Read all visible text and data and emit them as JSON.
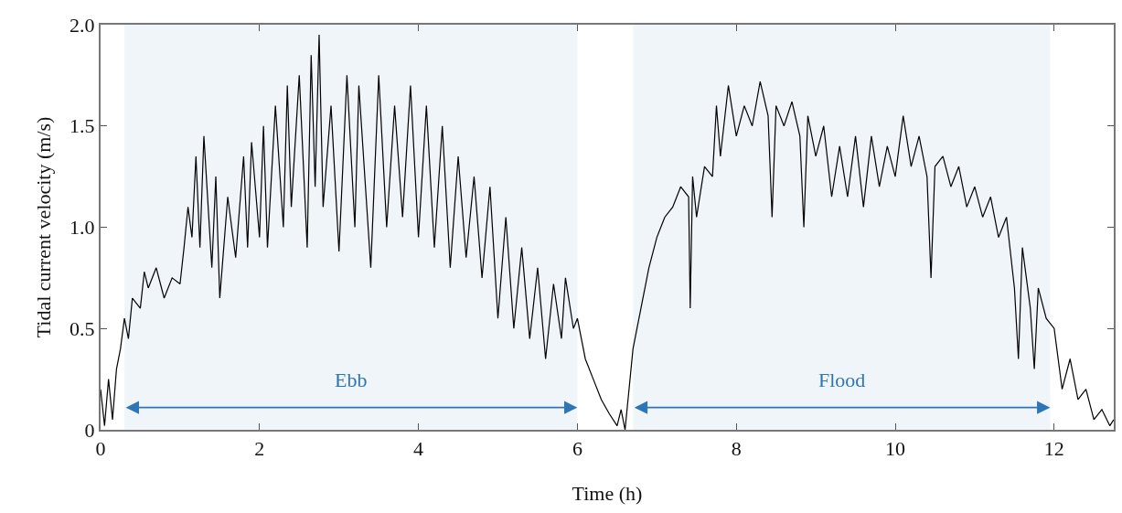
{
  "chart_data": {
    "type": "line",
    "xlabel": "Time (h)",
    "ylabel": "Tidal current velocity (m/s)",
    "xlim": [
      0,
      12.75
    ],
    "xticks": [
      0,
      2,
      4,
      6,
      8,
      10,
      12
    ],
    "ylim": [
      0,
      2.0
    ],
    "yticks": [
      0,
      0.5,
      {
        "value": 1.0,
        "label": "1.0"
      },
      1.5,
      {
        "value": 2.0,
        "label": "2.0"
      }
    ],
    "grid": false,
    "marker": "none",
    "line_style": "solid",
    "x": [
      0,
      0.05,
      0.1,
      0.15,
      0.2,
      0.25,
      0.3,
      0.35,
      0.4,
      0.5,
      0.55,
      0.6,
      0.7,
      0.8,
      0.9,
      1.0,
      1.05,
      1.1,
      1.15,
      1.2,
      1.25,
      1.3,
      1.4,
      1.45,
      1.5,
      1.6,
      1.7,
      1.8,
      1.85,
      1.9,
      2.0,
      2.05,
      2.1,
      2.2,
      2.3,
      2.35,
      2.4,
      2.5,
      2.6,
      2.65,
      2.7,
      2.75,
      2.8,
      2.9,
      3.0,
      3.1,
      3.2,
      3.25,
      3.4,
      3.5,
      3.6,
      3.7,
      3.8,
      3.9,
      4.0,
      4.1,
      4.2,
      4.3,
      4.4,
      4.5,
      4.6,
      4.7,
      4.8,
      4.9,
      5.0,
      5.1,
      5.2,
      5.3,
      5.4,
      5.5,
      5.6,
      5.7,
      5.8,
      5.85,
      5.95,
      6.0,
      6.1,
      6.2,
      6.3,
      6.4,
      6.5,
      6.55,
      6.6,
      6.65,
      6.7,
      6.8,
      6.9,
      7.0,
      7.1,
      7.2,
      7.3,
      7.4,
      7.42,
      7.45,
      7.5,
      7.6,
      7.7,
      7.75,
      7.8,
      7.9,
      8.0,
      8.1,
      8.2,
      8.3,
      8.4,
      8.45,
      8.5,
      8.6,
      8.7,
      8.8,
      8.85,
      8.9,
      9.0,
      9.1,
      9.2,
      9.3,
      9.4,
      9.5,
      9.6,
      9.7,
      9.8,
      9.9,
      10.0,
      10.1,
      10.2,
      10.3,
      10.4,
      10.45,
      10.5,
      10.6,
      10.7,
      10.8,
      10.9,
      11.0,
      11.1,
      11.2,
      11.3,
      11.4,
      11.5,
      11.55,
      11.6,
      11.7,
      11.75,
      11.8,
      11.9,
      12.0,
      12.1,
      12.2,
      12.3,
      12.4,
      12.5,
      12.6,
      12.7,
      12.75
    ],
    "series": [
      {
        "color": "#000000",
        "values": [
          0.2,
          0.02,
          0.25,
          0.05,
          0.3,
          0.4,
          0.55,
          0.45,
          0.65,
          0.6,
          0.78,
          0.7,
          0.8,
          0.65,
          0.75,
          0.72,
          0.9,
          1.1,
          0.95,
          1.35,
          0.9,
          1.45,
          0.8,
          1.25,
          0.65,
          1.15,
          0.85,
          1.35,
          0.9,
          1.42,
          0.95,
          1.5,
          0.9,
          1.6,
          1.0,
          1.7,
          1.1,
          1.75,
          0.9,
          1.85,
          1.2,
          1.95,
          1.1,
          1.6,
          0.88,
          1.75,
          1.0,
          1.7,
          0.8,
          1.75,
          1.0,
          1.6,
          1.05,
          1.7,
          0.95,
          1.6,
          0.9,
          1.5,
          0.8,
          1.35,
          0.85,
          1.25,
          0.75,
          1.2,
          0.55,
          1.05,
          0.5,
          0.9,
          0.45,
          0.8,
          0.35,
          0.72,
          0.45,
          0.75,
          0.5,
          0.55,
          0.35,
          0.25,
          0.15,
          0.08,
          0.02,
          0.1,
          0.0,
          0.2,
          0.4,
          0.6,
          0.8,
          0.95,
          1.05,
          1.1,
          1.2,
          1.15,
          0.6,
          1.25,
          1.05,
          1.3,
          1.25,
          1.6,
          1.35,
          1.7,
          1.45,
          1.6,
          1.5,
          1.72,
          1.55,
          1.05,
          1.6,
          1.5,
          1.62,
          1.45,
          1.0,
          1.55,
          1.35,
          1.5,
          1.15,
          1.4,
          1.15,
          1.45,
          1.1,
          1.45,
          1.2,
          1.4,
          1.25,
          1.55,
          1.3,
          1.45,
          1.25,
          0.75,
          1.3,
          1.35,
          1.2,
          1.3,
          1.1,
          1.2,
          1.05,
          1.15,
          0.95,
          1.05,
          0.7,
          0.35,
          0.9,
          0.6,
          0.3,
          0.7,
          0.55,
          0.5,
          0.2,
          0.35,
          0.15,
          0.2,
          0.05,
          0.1,
          0.02,
          0.05
        ]
      }
    ],
    "bands": [
      {
        "axis": "x",
        "from": 0.3,
        "to": 6.0,
        "label": "Ebb",
        "color": "#2e75b6"
      },
      {
        "axis": "x",
        "from": 6.7,
        "to": 11.95,
        "label": "Flood",
        "color": "#2e75b6"
      }
    ]
  }
}
